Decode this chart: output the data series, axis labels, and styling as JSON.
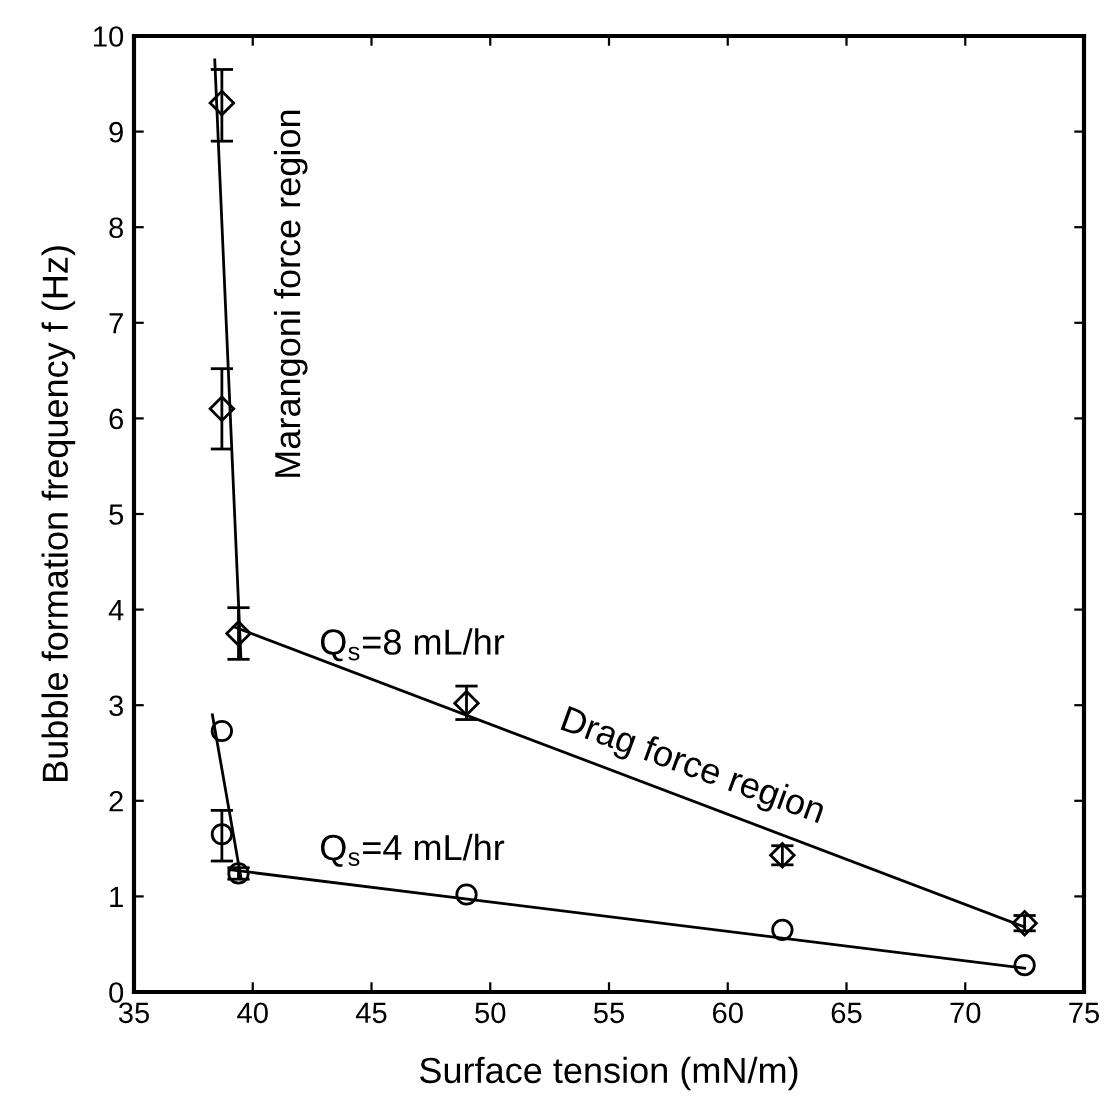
{
  "chart_data": {
    "type": "scatter",
    "xlabel": "Surface tension (mN/m)",
    "ylabel": "Bubble formation frequency f (Hz)",
    "xlim": [
      35,
      75
    ],
    "ylim": [
      0,
      10
    ],
    "xticks": [
      35,
      40,
      45,
      50,
      55,
      60,
      65,
      70,
      75
    ],
    "yticks": [
      0,
      1,
      2,
      3,
      4,
      5,
      6,
      7,
      8,
      9,
      10
    ],
    "grid": false,
    "legend": false,
    "series": [
      {
        "name": "Q$_{s}$=8 mL/hr",
        "color": "#000000",
        "marker": "diamond",
        "x": [
          38.7,
          38.7,
          39.4,
          49.0,
          62.3,
          72.5
        ],
        "values": [
          9.3,
          6.1,
          3.75,
          3.02,
          1.43,
          0.72
        ],
        "errors": [
          [
            8.9,
            9.65
          ],
          [
            5.68,
            6.52
          ],
          [
            3.48,
            4.02
          ],
          [
            2.85,
            3.2
          ],
          [
            1.33,
            1.53
          ],
          [
            0.64,
            0.8
          ]
        ]
      },
      {
        "name": "Q$_{s}$=4 mL/hr",
        "color": "#000000",
        "marker": "circle",
        "x": [
          38.7,
          38.7,
          39.4,
          49.0,
          62.3,
          72.5
        ],
        "values": [
          2.73,
          1.65,
          1.24,
          1.02,
          0.65,
          0.28
        ],
        "errors": [
          null,
          [
            1.37,
            1.9
          ],
          [
            1.18,
            1.3
          ],
          null,
          null,
          null
        ]
      },
      {
        "type": "line",
        "color": "#000000",
        "marker": "none",
        "x": [
          38.4,
          39.5
        ],
        "values": [
          9.75,
          3.5
        ]
      },
      {
        "type": "line",
        "color": "#000000",
        "marker": "none",
        "x": [
          39.2,
          72.5
        ],
        "values": [
          3.82,
          0.68
        ]
      },
      {
        "type": "line",
        "color": "#000000",
        "marker": "none",
        "x": [
          38.3,
          39.5
        ],
        "values": [
          2.9,
          1.2
        ]
      },
      {
        "type": "line",
        "color": "#000000",
        "marker": "none",
        "x": [
          39.0,
          72.5
        ],
        "values": [
          1.28,
          0.25
        ]
      }
    ],
    "annotations": [
      "Marangoni force region",
      "Drag force region"
    ]
  }
}
